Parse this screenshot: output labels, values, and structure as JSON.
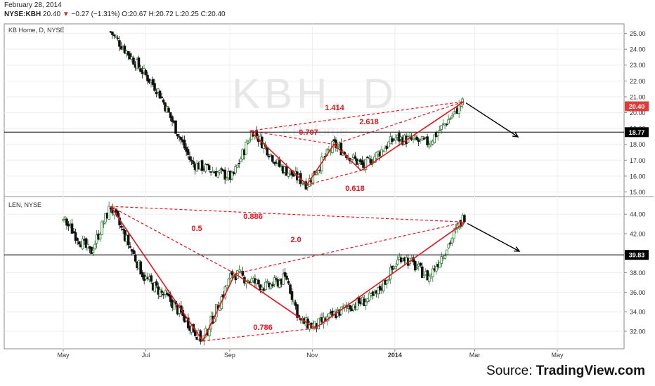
{
  "header": {
    "date": "February 28, 2014",
    "symbol": "NYSE:KBH",
    "last": "20.40",
    "change": "−0.27 (−1.31%)",
    "o_label": "O:",
    "open": "20.67",
    "h_label": "H:",
    "high": "20.72",
    "l_label": "L:",
    "low": "20.25",
    "c_label": "C:",
    "close": "20.40"
  },
  "source": {
    "prefix": "Source: ",
    "brand": "TradingView.com"
  },
  "colors": {
    "pattern": "#e8141c",
    "arrow": "#000000",
    "candle_up": "#2e7d32",
    "candle_down": "#111111",
    "last_badge": "#e53935"
  },
  "chart_data": [
    {
      "type": "candlestick",
      "title": "KB Home, D, NYSE",
      "ylim": [
        14.8,
        25.6
      ],
      "yticks": [
        15.0,
        16.0,
        17.0,
        18.0,
        19.0,
        20.0,
        21.0,
        22.0,
        23.0,
        24.0,
        25.0
      ],
      "x_tick_labels": [
        "May",
        "Jul",
        "Sep",
        "Nov",
        "2014",
        "Mar",
        "May"
      ],
      "x_tick_days": [
        0,
        61,
        123,
        184,
        245,
        304,
        365
      ],
      "last_price": "20.40",
      "horizontal_line": "18.77",
      "anchor_points": [
        {
          "day": 35,
          "price": 25.1
        },
        {
          "day": 70,
          "price": 21.4
        },
        {
          "day": 95,
          "price": 16.8
        },
        {
          "day": 125,
          "price": 15.9
        },
        {
          "day": 140,
          "price": 18.9
        },
        {
          "day": 160,
          "price": 16.6
        },
        {
          "day": 180,
          "price": 15.5
        },
        {
          "day": 200,
          "price": 18.0
        },
        {
          "day": 222,
          "price": 16.6
        },
        {
          "day": 245,
          "price": 18.4
        },
        {
          "day": 270,
          "price": 18.1
        },
        {
          "day": 285,
          "price": 19.6
        },
        {
          "day": 296,
          "price": 20.7
        }
      ],
      "pattern_points": [
        {
          "day": 138,
          "price": 18.85
        },
        {
          "day": 180,
          "price": 15.45
        },
        {
          "day": 200,
          "price": 18.0
        },
        {
          "day": 220,
          "price": 16.35
        },
        {
          "day": 296,
          "price": 20.7
        }
      ],
      "pattern_ratios": [
        "1.414",
        "0.707",
        "2.618",
        "0.618"
      ]
    },
    {
      "type": "candlestick",
      "title": "LEN, NYSE",
      "ylim": [
        30.2,
        45.6
      ],
      "yticks": [
        32.0,
        34.0,
        36.0,
        38.0,
        40.0,
        42.0,
        44.0
      ],
      "last_price": "39.83",
      "anchor_points": [
        {
          "day": 0,
          "price": 43.5
        },
        {
          "day": 20,
          "price": 40.0
        },
        {
          "day": 35,
          "price": 44.8
        },
        {
          "day": 60,
          "price": 37.5
        },
        {
          "day": 80,
          "price": 35.0
        },
        {
          "day": 103,
          "price": 31.0
        },
        {
          "day": 125,
          "price": 38.0
        },
        {
          "day": 150,
          "price": 36.5
        },
        {
          "day": 165,
          "price": 37.5
        },
        {
          "day": 175,
          "price": 33.0
        },
        {
          "day": 186,
          "price": 32.5
        },
        {
          "day": 210,
          "price": 34.5
        },
        {
          "day": 230,
          "price": 35.5
        },
        {
          "day": 250,
          "price": 39.8
        },
        {
          "day": 270,
          "price": 37.5
        },
        {
          "day": 285,
          "price": 41.0
        },
        {
          "day": 297,
          "price": 44.0
        }
      ],
      "pattern_points": [
        {
          "day": 35,
          "price": 44.8
        },
        {
          "day": 103,
          "price": 31.0
        },
        {
          "day": 127,
          "price": 37.9
        },
        {
          "day": 186,
          "price": 32.3
        },
        {
          "day": 297,
          "price": 43.2
        }
      ],
      "pattern_ratios": [
        "0.5",
        "0.886",
        "2.0",
        "0.786"
      ]
    }
  ]
}
